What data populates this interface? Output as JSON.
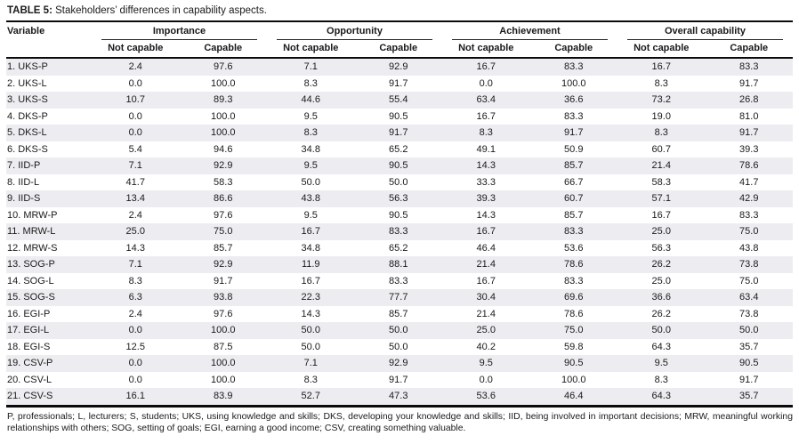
{
  "title": {
    "label": "TABLE 5:",
    "text": " Stakeholders’ differences in capability aspects."
  },
  "table": {
    "variable_header": "Variable",
    "groups": [
      {
        "label": "Importance"
      },
      {
        "label": "Opportunity"
      },
      {
        "label": "Achievement"
      },
      {
        "label": "Overall capability"
      }
    ],
    "sub_headers": [
      "Not capable",
      "Capable"
    ],
    "rows": [
      {
        "variable": "1. UKS-P",
        "values": [
          "2.4",
          "97.6",
          "7.1",
          "92.9",
          "16.7",
          "83.3",
          "16.7",
          "83.3"
        ]
      },
      {
        "variable": "2. UKS-L",
        "values": [
          "0.0",
          "100.0",
          "8.3",
          "91.7",
          "0.0",
          "100.0",
          "8.3",
          "91.7"
        ]
      },
      {
        "variable": "3. UKS-S",
        "values": [
          "10.7",
          "89.3",
          "44.6",
          "55.4",
          "63.4",
          "36.6",
          "73.2",
          "26.8"
        ]
      },
      {
        "variable": "4. DKS-P",
        "values": [
          "0.0",
          "100.0",
          "9.5",
          "90.5",
          "16.7",
          "83.3",
          "19.0",
          "81.0"
        ]
      },
      {
        "variable": "5. DKS-L",
        "values": [
          "0.0",
          "100.0",
          "8.3",
          "91.7",
          "8.3",
          "91.7",
          "8.3",
          "91.7"
        ]
      },
      {
        "variable": "6. DKS-S",
        "values": [
          "5.4",
          "94.6",
          "34.8",
          "65.2",
          "49.1",
          "50.9",
          "60.7",
          "39.3"
        ]
      },
      {
        "variable": "7. IID-P",
        "values": [
          "7.1",
          "92.9",
          "9.5",
          "90.5",
          "14.3",
          "85.7",
          "21.4",
          "78.6"
        ]
      },
      {
        "variable": "8. IID-L",
        "values": [
          "41.7",
          "58.3",
          "50.0",
          "50.0",
          "33.3",
          "66.7",
          "58.3",
          "41.7"
        ]
      },
      {
        "variable": "9. IID-S",
        "values": [
          "13.4",
          "86.6",
          "43.8",
          "56.3",
          "39.3",
          "60.7",
          "57.1",
          "42.9"
        ]
      },
      {
        "variable": "10. MRW-P",
        "values": [
          "2.4",
          "97.6",
          "9.5",
          "90.5",
          "14.3",
          "85.7",
          "16.7",
          "83.3"
        ]
      },
      {
        "variable": "11. MRW-L",
        "values": [
          "25.0",
          "75.0",
          "16.7",
          "83.3",
          "16.7",
          "83.3",
          "25.0",
          "75.0"
        ]
      },
      {
        "variable": "12. MRW-S",
        "values": [
          "14.3",
          "85.7",
          "34.8",
          "65.2",
          "46.4",
          "53.6",
          "56.3",
          "43.8"
        ]
      },
      {
        "variable": "13. SOG-P",
        "values": [
          "7.1",
          "92.9",
          "11.9",
          "88.1",
          "21.4",
          "78.6",
          "26.2",
          "73.8"
        ]
      },
      {
        "variable": "14. SOG-L",
        "values": [
          "8.3",
          "91.7",
          "16.7",
          "83.3",
          "16.7",
          "83.3",
          "25.0",
          "75.0"
        ]
      },
      {
        "variable": "15. SOG-S",
        "values": [
          "6.3",
          "93.8",
          "22.3",
          "77.7",
          "30.4",
          "69.6",
          "36.6",
          "63.4"
        ]
      },
      {
        "variable": "16. EGI-P",
        "values": [
          "2.4",
          "97.6",
          "14.3",
          "85.7",
          "21.4",
          "78.6",
          "26.2",
          "73.8"
        ]
      },
      {
        "variable": "17. EGI-L",
        "values": [
          "0.0",
          "100.0",
          "50.0",
          "50.0",
          "25.0",
          "75.0",
          "50.0",
          "50.0"
        ]
      },
      {
        "variable": "18. EGI-S",
        "values": [
          "12.5",
          "87.5",
          "50.0",
          "50.0",
          "40.2",
          "59.8",
          "64.3",
          "35.7"
        ]
      },
      {
        "variable": "19. CSV-P",
        "values": [
          "0.0",
          "100.0",
          "7.1",
          "92.9",
          "9.5",
          "90.5",
          "9.5",
          "90.5"
        ]
      },
      {
        "variable": "20. CSV-L",
        "values": [
          "0.0",
          "100.0",
          "8.3",
          "91.7",
          "0.0",
          "100.0",
          "8.3",
          "91.7"
        ]
      },
      {
        "variable": "21. CSV-S",
        "values": [
          "16.1",
          "83.9",
          "52.7",
          "47.3",
          "53.6",
          "46.4",
          "64.3",
          "35.7"
        ]
      }
    ]
  },
  "footnote": "P, professionals; L, lecturers; S, students; UKS, using knowledge and skills; DKS, developing your knowledge and skills; IID, being involved in important decisions; MRW, meaningful working relationships with others; SOG, setting of goals; EGI, earning a good income; CSV, creating something valuable.",
  "colors": {
    "stripe": "#ededf1",
    "rule_heavy": "#0a0a0a",
    "rule_thin": "#2a2a2a",
    "text": "#1a1a1a"
  }
}
